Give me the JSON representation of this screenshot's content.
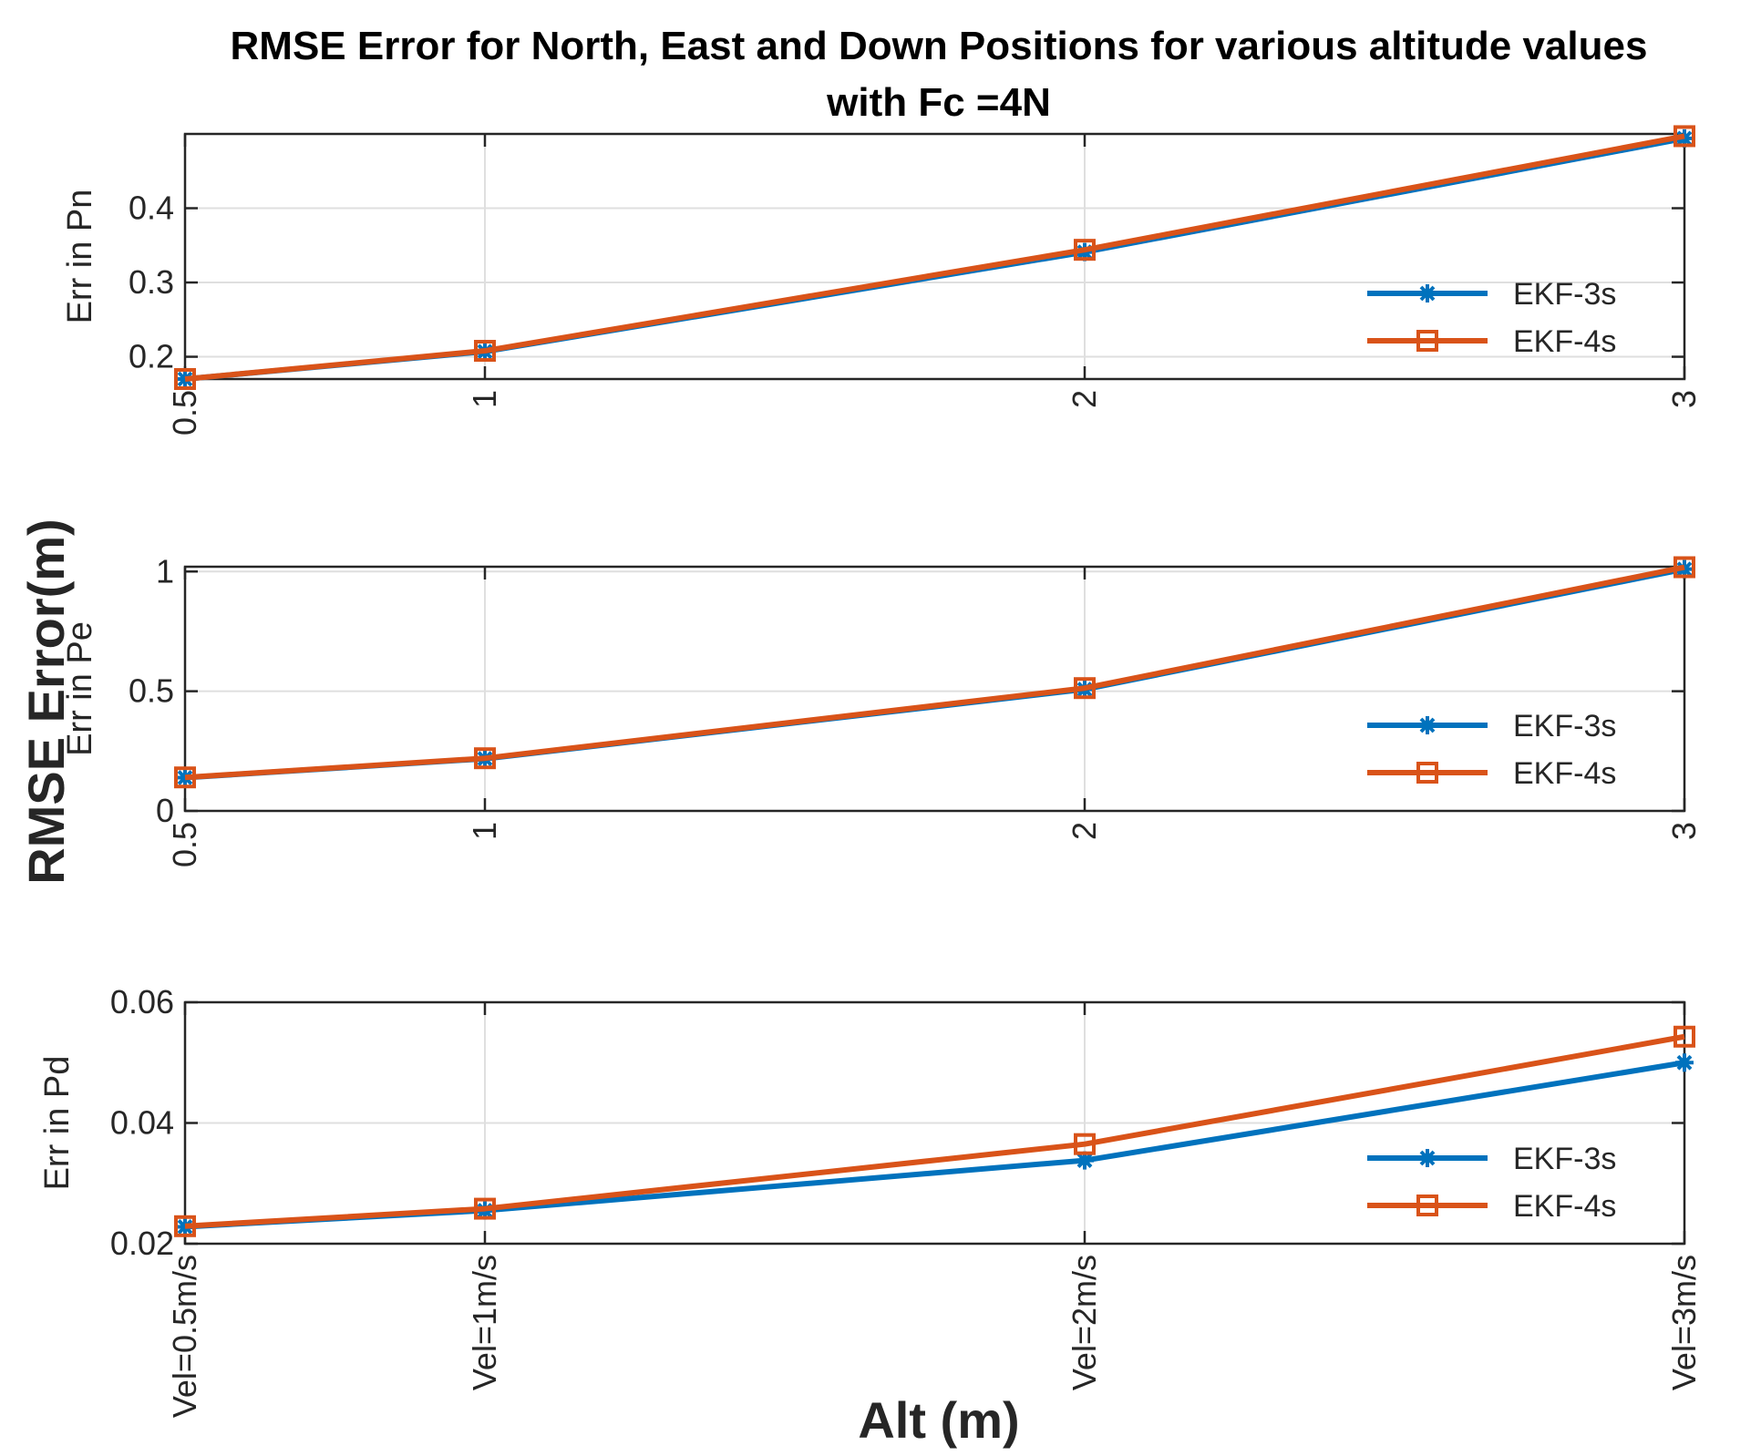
{
  "chart_data": [
    {
      "type": "line",
      "ylabel": "Err in Pn",
      "xlabel": "",
      "categories": [
        "0.5",
        "1",
        "2",
        "3"
      ],
      "x": [
        0.5,
        1,
        2,
        3
      ],
      "ylim": [
        0.17,
        0.5
      ],
      "yticks": [
        0.2,
        0.3,
        0.4
      ],
      "ytick_labels": [
        "0.2",
        "0.3",
        "0.4"
      ],
      "grid": true,
      "legend_position": "lower-right",
      "series": [
        {
          "name": "EKF-3s",
          "color": "#0072BD",
          "marker": "asterisk",
          "values": [
            0.17,
            0.207,
            0.341,
            0.494
          ]
        },
        {
          "name": "EKF-4s",
          "color": "#D95319",
          "marker": "square",
          "values": [
            0.17,
            0.208,
            0.344,
            0.497
          ]
        }
      ]
    },
    {
      "type": "line",
      "ylabel": "Err in Pe",
      "xlabel": "",
      "categories": [
        "0.5",
        "1",
        "2",
        "3"
      ],
      "x": [
        0.5,
        1,
        2,
        3
      ],
      "ylim": [
        0,
        1.02
      ],
      "yticks": [
        0,
        0.5,
        1
      ],
      "ytick_labels": [
        "0",
        "0.5",
        "1"
      ],
      "grid": true,
      "legend_position": "lower-right",
      "series": [
        {
          "name": "EKF-3s",
          "color": "#0072BD",
          "marker": "asterisk",
          "values": [
            0.139,
            0.218,
            0.508,
            1.01
          ]
        },
        {
          "name": "EKF-4s",
          "color": "#D95319",
          "marker": "square",
          "values": [
            0.14,
            0.22,
            0.513,
            1.018
          ]
        }
      ]
    },
    {
      "type": "line",
      "ylabel": "Err in Pd",
      "xlabel": "Alt (m)",
      "categories": [
        "Vel=0.5m/s",
        "Vel=1m/s",
        "Vel=2m/s",
        "Vel=3m/s"
      ],
      "x": [
        0.5,
        1,
        2,
        3
      ],
      "ylim": [
        0.02,
        0.06
      ],
      "yticks": [
        0.02,
        0.04,
        0.06
      ],
      "ytick_labels": [
        "0.02",
        "0.04",
        "0.06"
      ],
      "grid": true,
      "legend_position": "lower-right",
      "series": [
        {
          "name": "EKF-3s",
          "color": "#0072BD",
          "marker": "asterisk",
          "values": [
            0.0228,
            0.0255,
            0.0338,
            0.05
          ]
        },
        {
          "name": "EKF-4s",
          "color": "#D95319",
          "marker": "square",
          "values": [
            0.0229,
            0.0258,
            0.0365,
            0.0543
          ]
        }
      ]
    }
  ],
  "figure": {
    "title_line1": "RMSE Error for North, East and Down Positions for various altitude values",
    "title_line2": "with Fc =4N",
    "y_label": "RMSE Error(m)",
    "x_label": "Alt (m)"
  }
}
